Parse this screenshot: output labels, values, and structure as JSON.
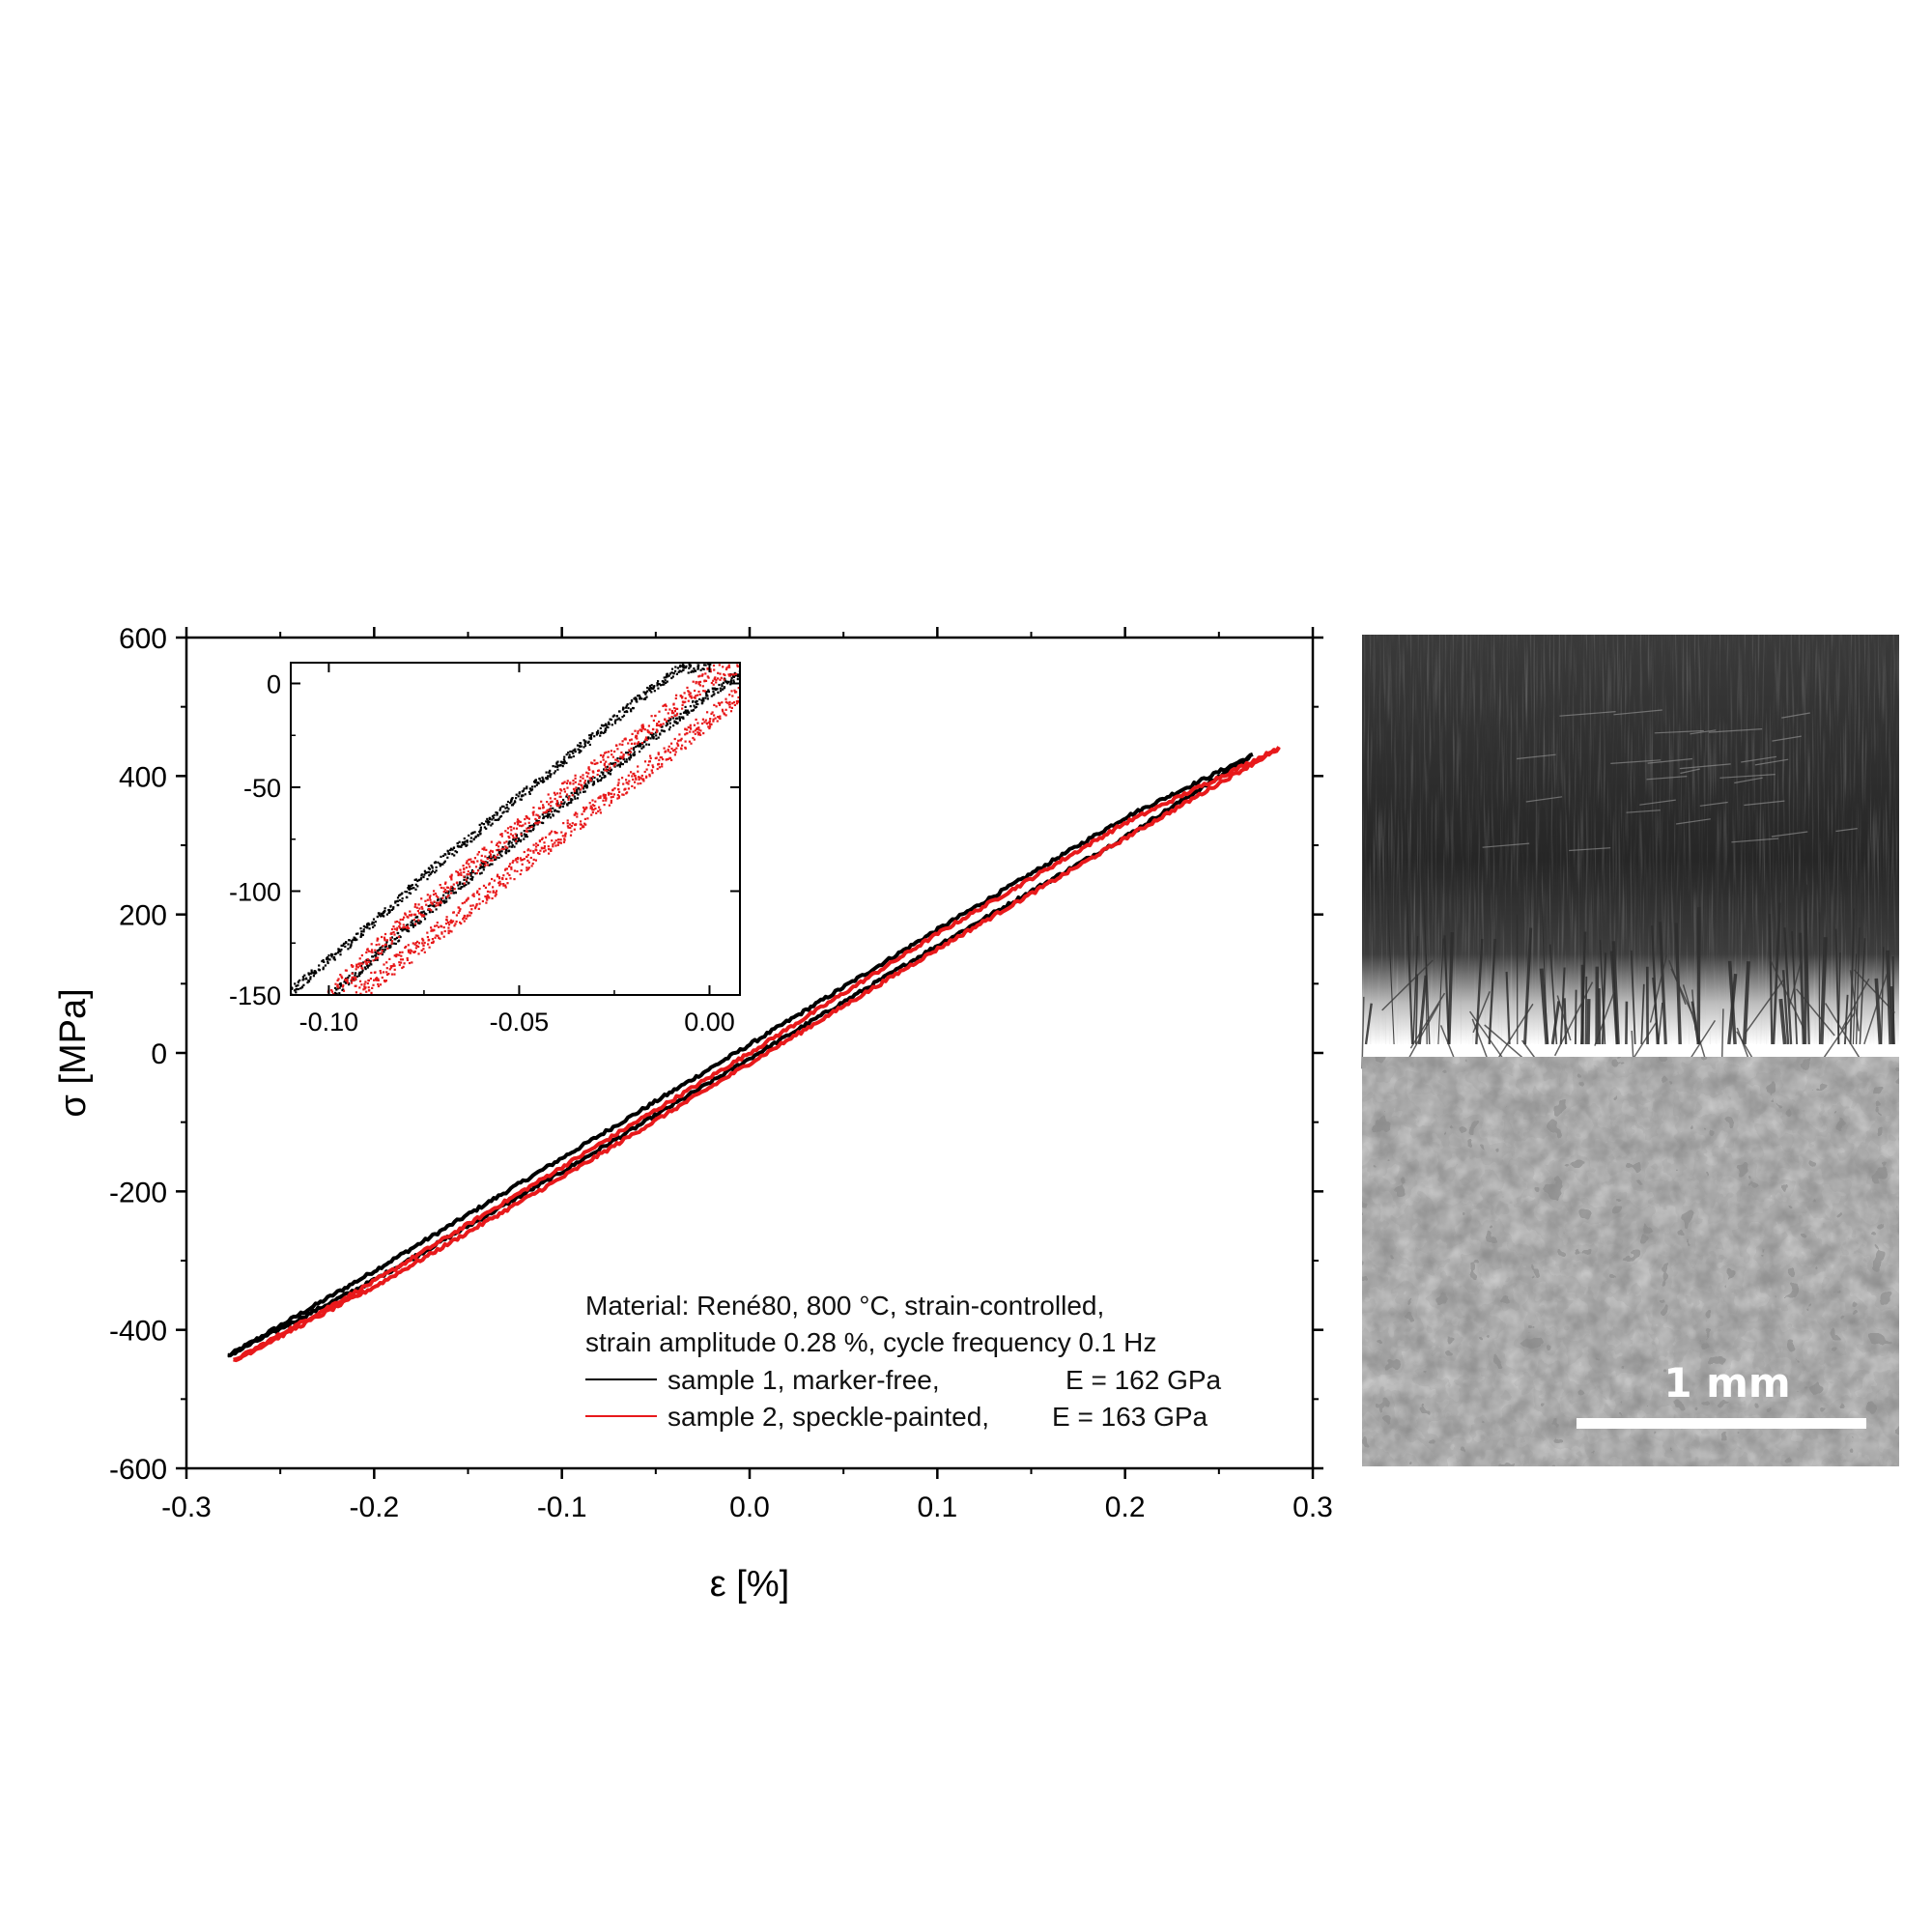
{
  "chart_data": [
    {
      "type": "line",
      "title": "",
      "xlabel": "ε [%]",
      "ylabel": "σ [MPa]",
      "xlim": [
        -0.3,
        0.3
      ],
      "ylim": [
        -600,
        600
      ],
      "xticks": [
        "-0.3",
        "-0.2",
        "-0.1",
        "0.0",
        "0.1",
        "0.2",
        "0.3"
      ],
      "yticks": [
        "600",
        "400",
        "200",
        "0",
        "-200",
        "-400",
        "-600"
      ],
      "grid": false,
      "annotation_lines": [
        "Material: René80, 800 °C, strain-controlled,",
        "strain amplitude 0.28 %, cycle frequency 0.1 Hz"
      ],
      "legend": {
        "placement": "bottom-right"
      },
      "series": [
        {
          "name": "sample 1, marker-free,",
          "name_suffix": "E = 162 GPa",
          "color": "#000000",
          "upper_branch": {
            "x": [
              -0.278,
              -0.2,
              -0.1,
              0.0,
              0.1,
              0.2,
              0.268
            ],
            "y": [
              -438,
              -315,
              -152,
              12,
              178,
              340,
              430
            ]
          },
          "lower_branch": {
            "x": [
              -0.278,
              -0.2,
              -0.1,
              0.0,
              0.1,
              0.2,
              0.268
            ],
            "y": [
              -438,
              -328,
              -172,
              -8,
              155,
              312,
              430
            ]
          }
        },
        {
          "name": "sample 2, speckle-painted,",
          "name_suffix": "E = 163 GPa",
          "color": "#e8191b",
          "upper_branch": {
            "x": [
              -0.275,
              -0.2,
              -0.1,
              0.0,
              0.1,
              0.2,
              0.282
            ],
            "y": [
              -445,
              -330,
              -165,
              0,
              172,
              332,
              440
            ]
          },
          "lower_branch": {
            "x": [
              -0.275,
              -0.2,
              -0.1,
              0.0,
              0.1,
              0.2,
              0.282
            ],
            "y": [
              -445,
              -338,
              -180,
              -15,
              150,
              310,
              440
            ]
          }
        }
      ]
    },
    {
      "type": "scatter",
      "title": "",
      "xlim": [
        -0.11,
        0.008
      ],
      "ylim": [
        -150,
        10
      ],
      "xticks": [
        "-0.10",
        "-0.05",
        "0.00"
      ],
      "yticks": [
        "0",
        "-50",
        "-100",
        "-150"
      ],
      "grid": false,
      "series": [
        {
          "color": "#000000",
          "branches": [
            {
              "x": [
                -0.111,
                -0.09,
                -0.07,
                -0.05,
                -0.03,
                -0.01,
                0.0
              ],
              "y": [
                -150,
                -118,
                -85,
                -55,
                -25,
                5,
                10
              ]
            },
            {
              "x": [
                -0.099,
                -0.08,
                -0.06,
                -0.04,
                -0.02,
                0.0,
                0.008
              ],
              "y": [
                -150,
                -119,
                -89,
                -60,
                -33,
                -5,
                5
              ]
            }
          ]
        },
        {
          "color": "#e8191b",
          "branches": [
            {
              "x": [
                -0.1,
                -0.08,
                -0.06,
                -0.04,
                -0.02,
                0.0,
                0.008
              ],
              "y": [
                -150,
                -115,
                -85,
                -55,
                -28,
                3,
                10
              ]
            },
            {
              "x": [
                -0.093,
                -0.07,
                -0.05,
                -0.03,
                -0.01,
                0.008
              ],
              "y": [
                -150,
                -118,
                -88,
                -60,
                -32,
                -5
              ]
            }
          ]
        }
      ]
    }
  ],
  "micrographs": {
    "top": {
      "description": "marker-free"
    },
    "bottom": {
      "description": "speckle-painted"
    },
    "scale_bar_label": "1 mm"
  }
}
